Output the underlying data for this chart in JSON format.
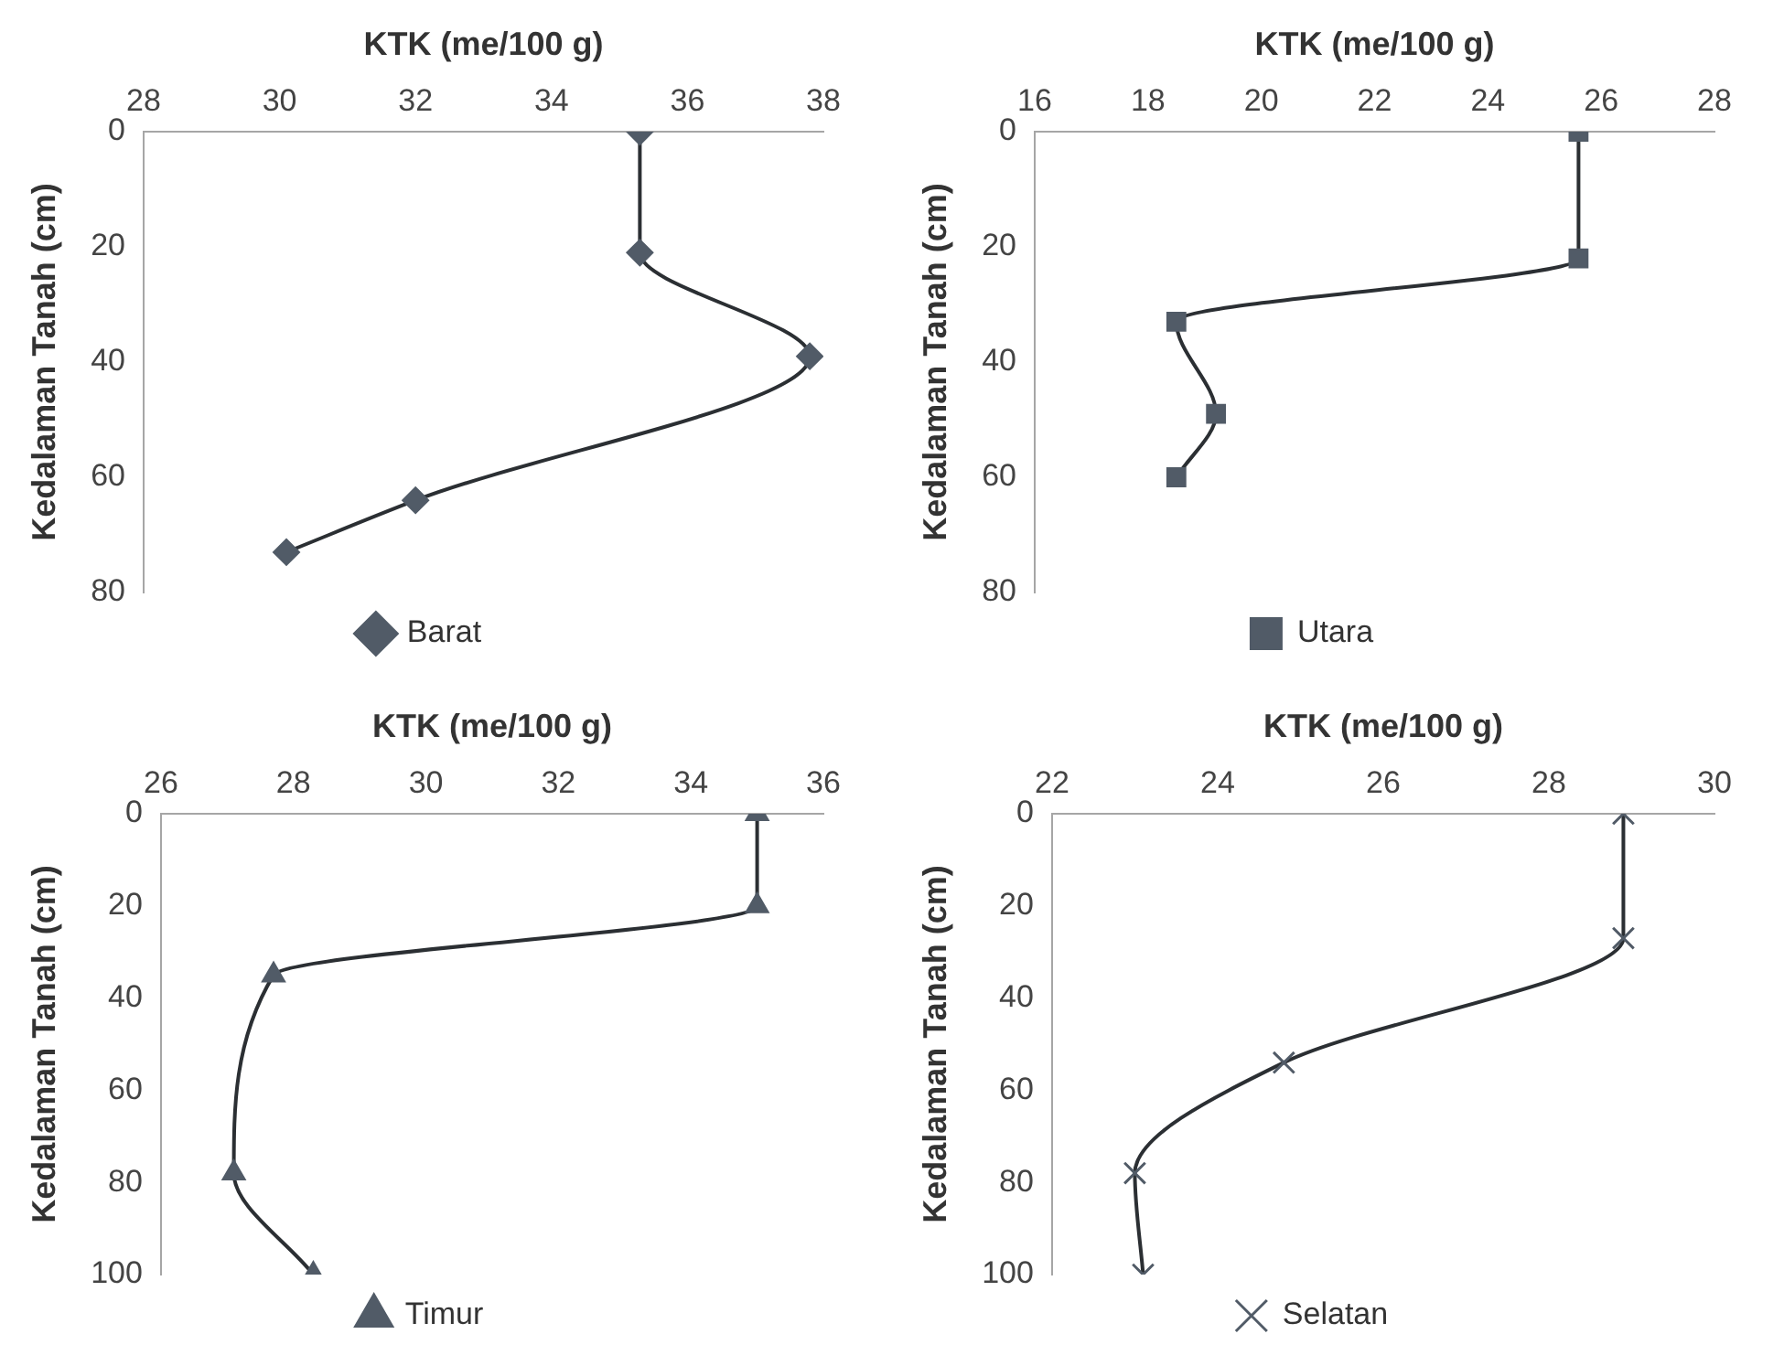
{
  "chart_data": [
    {
      "type": "line",
      "xlabel": "KTK (me/100 g)",
      "ylabel": "Kedalaman Tanah (cm)",
      "xlim": [
        28,
        38
      ],
      "xticks": [
        28,
        30,
        32,
        34,
        36,
        38
      ],
      "ylim": [
        80,
        0
      ],
      "yticks": [
        0,
        20,
        40,
        60,
        80
      ],
      "grid": false,
      "legend": "bottom",
      "marker": "diamond",
      "line_style": "solid",
      "series": [
        {
          "name": "Barat",
          "color": "#515b67",
          "x": [
            35.3,
            35.3,
            37.8,
            32,
            30.1
          ],
          "values": [
            0,
            21,
            39,
            64,
            73
          ]
        }
      ]
    },
    {
      "type": "line",
      "xlabel": "KTK (me/100 g)",
      "ylabel": "Kedalaman Tanah (cm)",
      "xlim": [
        16,
        28
      ],
      "xticks": [
        16,
        18,
        20,
        22,
        24,
        26,
        28
      ],
      "ylim": [
        80,
        0
      ],
      "yticks": [
        0,
        20,
        40,
        60,
        80
      ],
      "grid": false,
      "legend": "bottom",
      "marker": "square",
      "line_style": "solid",
      "series": [
        {
          "name": "Utara",
          "color": "#515b67",
          "x": [
            25.6,
            25.6,
            18.5,
            19.2,
            18.5
          ],
          "values": [
            0,
            22,
            33,
            49,
            60
          ]
        }
      ]
    },
    {
      "type": "line",
      "xlabel": "KTK (me/100 g)",
      "ylabel": "Kedalaman Tanah (cm)",
      "xlim": [
        26,
        36
      ],
      "xticks": [
        26,
        28,
        30,
        32,
        34,
        36
      ],
      "ylim": [
        100,
        0
      ],
      "yticks": [
        0,
        20,
        40,
        60,
        80,
        100
      ],
      "grid": false,
      "legend": "bottom",
      "marker": "triangle",
      "line_style": "solid",
      "series": [
        {
          "name": "Timur",
          "color": "#515b67",
          "x": [
            35,
            35,
            27.7,
            27.1,
            28.3
          ],
          "values": [
            0,
            20,
            35,
            78,
            100
          ]
        }
      ]
    },
    {
      "type": "line",
      "xlabel": "KTK (me/100 g)",
      "ylabel": "Kedalaman Tanah (cm)",
      "xlim": [
        22,
        30
      ],
      "xticks": [
        22,
        24,
        26,
        28,
        30
      ],
      "ylim": [
        100,
        0
      ],
      "yticks": [
        0,
        20,
        40,
        60,
        80,
        100
      ],
      "grid": false,
      "legend": "bottom",
      "marker": "cross",
      "line_style": "solid",
      "series": [
        {
          "name": "Selatan",
          "color": "#515b67",
          "x": [
            28.9,
            28.9,
            24.8,
            23,
            23.1
          ],
          "values": [
            0,
            27,
            54,
            78,
            100
          ]
        }
      ]
    }
  ]
}
